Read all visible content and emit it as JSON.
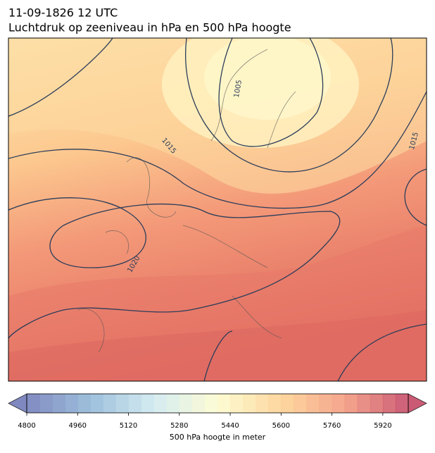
{
  "header": {
    "line1": "11-09-1826 12 UTC",
    "line2": "Luchtdruk op zeeniveau in hPa en 500 hPa hoogte"
  },
  "map": {
    "isobar_labels": [
      1005,
      1015,
      1015,
      1020
    ]
  },
  "colorbar": {
    "xlim": [
      4800,
      6000
    ],
    "xticks": [
      4800,
      4960,
      5120,
      5280,
      5440,
      5600,
      5760,
      5920
    ],
    "step": 40,
    "colors": [
      "#6b74b6",
      "#8db5d5",
      "#cde8ef",
      "#fdfbcc",
      "#fdd08e",
      "#f3967a",
      "#c23f5e"
    ],
    "label": "500 hPa hoogte in meter"
  }
}
